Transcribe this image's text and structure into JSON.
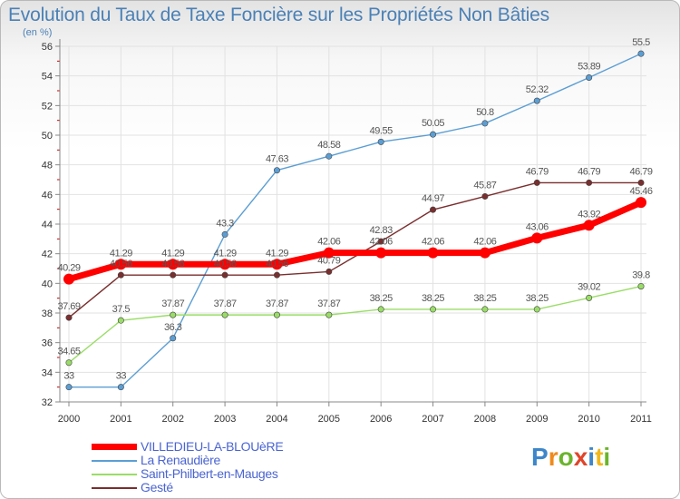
{
  "title": "Evolution du Taux de Taxe Foncière sur les Propriétés Non Bâties",
  "unit": "(en %)",
  "logo": "Proxiti",
  "chart_data": {
    "type": "line",
    "title": "Evolution du Taux de Taxe Foncière sur les Propriétés Non Bâties",
    "ylabel": "(en %)",
    "xlabel": "",
    "x": [
      "2000",
      "2001",
      "2002",
      "2003",
      "2004",
      "2005",
      "2006",
      "2007",
      "2008",
      "2009",
      "2010",
      "2011"
    ],
    "ylim": [
      32,
      56
    ],
    "yticks": [
      32,
      34,
      36,
      38,
      40,
      42,
      44,
      46,
      48,
      50,
      52,
      54,
      56
    ],
    "grid": "both",
    "legend_position": "bottom-left",
    "series": [
      {
        "name": "VILLEDIEU-LA-BLOUèRE",
        "color": "#ff0000",
        "values": [
          40.29,
          41.29,
          41.29,
          41.29,
          41.29,
          42.06,
          42.06,
          42.06,
          42.06,
          43.06,
          43.92,
          45.46
        ],
        "labels": [
          "40.29",
          "41.29",
          "41.29",
          "41.29",
          "41.29",
          "42.06",
          "42.06",
          "42.06",
          "42.06",
          "43.06",
          "43.92",
          "45.46"
        ]
      },
      {
        "name": "La Renaudière",
        "color": "#5b9ed4",
        "values": [
          33,
          33,
          36.3,
          43.3,
          47.63,
          48.58,
          49.55,
          50.05,
          50.8,
          52.32,
          53.89,
          55.5
        ],
        "labels": [
          "33",
          "33",
          "36.3",
          "43.3",
          "47.63",
          "48.58",
          "49.55",
          "50.05",
          "50.8",
          "52.32",
          "53.89",
          "55.5"
        ]
      },
      {
        "name": "Saint-Philbert-en-Mauges",
        "color": "#99dd66",
        "values": [
          34.65,
          37.5,
          37.87,
          37.87,
          37.87,
          37.87,
          38.25,
          38.25,
          38.25,
          38.25,
          39.02,
          39.8
        ],
        "labels": [
          "34.65",
          "37.5",
          "37.87",
          "37.87",
          "37.87",
          "37.87",
          "38.25",
          "38.25",
          "38.25",
          "38.25",
          "39.02",
          "39.8"
        ]
      },
      {
        "name": "Gesté",
        "color": "#7a2e2e",
        "values": [
          37.69,
          40.56,
          40.56,
          40.56,
          40.56,
          40.79,
          42.83,
          44.97,
          45.87,
          46.79,
          46.79,
          46.79
        ],
        "labels": [
          "37.69",
          "40.56",
          "40.56",
          "40.56",
          "40.56",
          "40.79",
          "42.83",
          "44.97",
          "45.87",
          "46.79",
          "46.79",
          "46.79"
        ]
      }
    ]
  }
}
